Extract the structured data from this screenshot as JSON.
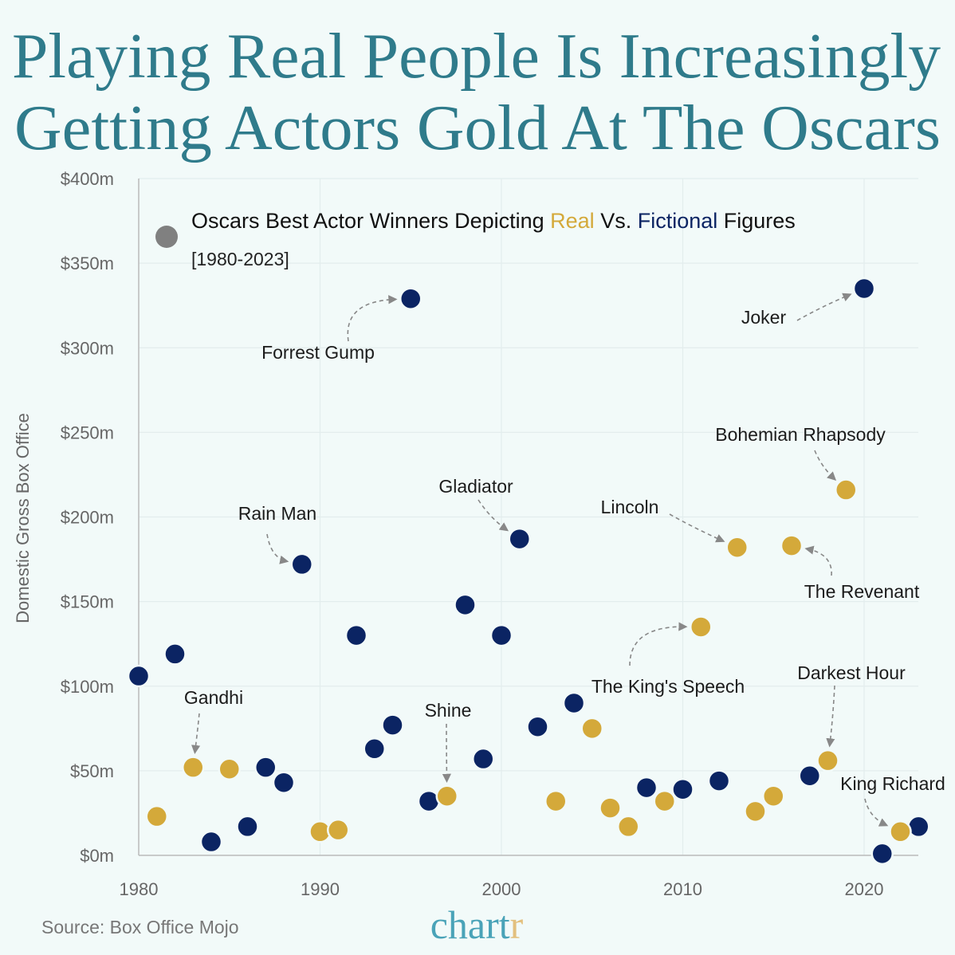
{
  "chart_data": {
    "type": "scatter",
    "title": [
      "Playing Real People Is Increasingly",
      "Getting Actors Gold At The Oscars"
    ],
    "legend": {
      "prefix": "Oscars Best Actor Winners Depicting ",
      "real": "Real",
      "middle": " Vs. ",
      "fictional": "Fictional",
      "suffix": " Figures",
      "subtitle": "[1980-2023]"
    },
    "ylabel": "Domestic Gross Box Office",
    "xlim": [
      1980,
      2023
    ],
    "ylim": [
      0,
      400
    ],
    "xticks": [
      "1980",
      "1990",
      "2000",
      "2010",
      "2020"
    ],
    "yticks": [
      "$0m",
      "$50m",
      "$100m",
      "$150m",
      "$200m",
      "$250m",
      "$300m",
      "$350m",
      "$400m"
    ],
    "grid": true,
    "colors": {
      "real": "#d4a93a",
      "fictional": "#0b2463",
      "legend_dot": "#808080",
      "title": "#2f7b8b",
      "background": "#f2faf9"
    },
    "series": [
      {
        "name": "Fictional",
        "points": [
          [
            1980,
            106
          ],
          [
            1982,
            119
          ],
          [
            1984,
            8
          ],
          [
            1986,
            17
          ],
          [
            1987,
            52
          ],
          [
            1988,
            43
          ],
          [
            1989,
            172
          ],
          [
            1992,
            130
          ],
          [
            1993,
            63
          ],
          [
            1994,
            77
          ],
          [
            1995,
            329
          ],
          [
            1996,
            32
          ],
          [
            1998,
            148
          ],
          [
            1999,
            57
          ],
          [
            2000,
            130
          ],
          [
            2001,
            187
          ],
          [
            2002,
            76
          ],
          [
            2004,
            90
          ],
          [
            2008,
            40
          ],
          [
            2010,
            39
          ],
          [
            2012,
            44
          ],
          [
            2017,
            47
          ],
          [
            2020,
            335
          ],
          [
            2021,
            1
          ],
          [
            2023,
            17
          ]
        ]
      },
      {
        "name": "Real",
        "points": [
          [
            1981,
            23
          ],
          [
            1983,
            52
          ],
          [
            1985,
            51
          ],
          [
            1990,
            14
          ],
          [
            1991,
            15
          ],
          [
            1997,
            35
          ],
          [
            2003,
            32
          ],
          [
            2005,
            75
          ],
          [
            2006,
            28
          ],
          [
            2007,
            17
          ],
          [
            2009,
            32
          ],
          [
            2011,
            135
          ],
          [
            2013,
            182
          ],
          [
            2014,
            26
          ],
          [
            2015,
            35
          ],
          [
            2016,
            183
          ],
          [
            2018,
            56
          ],
          [
            2019,
            216
          ],
          [
            2022,
            14
          ]
        ]
      }
    ],
    "annotations": [
      {
        "label": "Forrest Gump",
        "x": 1995,
        "y": 329
      },
      {
        "label": "Joker",
        "x": 2020,
        "y": 335
      },
      {
        "label": "Bohemian Rhapsody",
        "x": 2019,
        "y": 216
      },
      {
        "label": "Lincoln",
        "x": 2013,
        "y": 182
      },
      {
        "label": "The Revenant",
        "x": 2016,
        "y": 183
      },
      {
        "label": "Gladiator",
        "x": 2001,
        "y": 187
      },
      {
        "label": "Rain Man",
        "x": 1989,
        "y": 172
      },
      {
        "label": "The King's Speech",
        "x": 2011,
        "y": 135
      },
      {
        "label": "Darkest Hour",
        "x": 2018,
        "y": 56
      },
      {
        "label": "Gandhi",
        "x": 1983,
        "y": 52
      },
      {
        "label": "Shine",
        "x": 1997,
        "y": 35
      },
      {
        "label": "King Richard",
        "x": 2022,
        "y": 14
      }
    ]
  },
  "footer": {
    "source": "Source: Box Office Mojo",
    "logo_main": "chart",
    "logo_end": "r"
  }
}
